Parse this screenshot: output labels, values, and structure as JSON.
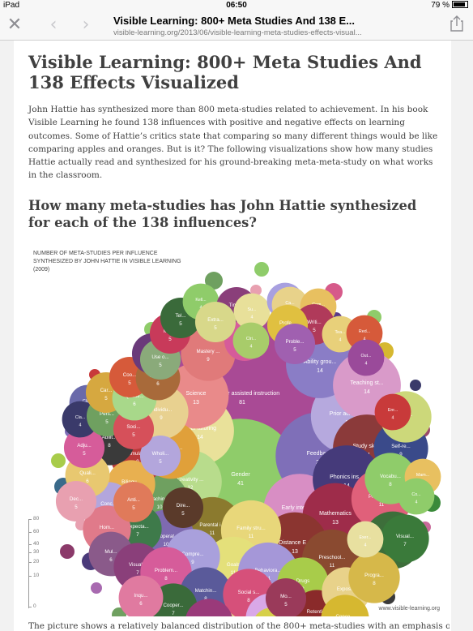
{
  "status": {
    "device": "iPad",
    "time": "06:50",
    "battery": "79 %"
  },
  "nav": {
    "title": "Visible Learning: 800+ Meta Studies And 138 E...",
    "url": "visible-learning.org/2013/06/visible-learning-meta-studies-effects-visual..."
  },
  "article": {
    "title": "Visible Learning: 800+ Meta Studies And 138 Effects Visualized",
    "intro": "John Hattie has synthesized more than 800 meta-studies related to achievement. In his book Visible Learning he found 138 influences with positive and negative effects on learning outcomes. Some of Hattie’s critics state that comparing so many different things would be like comparing apples and oranges. But is it? The following visualizations show how many studies Hattie actually read and synthesized for his ground-breaking meta-meta-study on what works in the classroom.",
    "subtitle": "How many meta-studies has John Hattie synthesized for each of the 138 influences?",
    "outro": "The picture shows a relatively balanced distribution of the 800+ meta-studies with an emphasis on"
  },
  "chart_data": {
    "type": "bubble",
    "title": "NUMBER OF META-STUDIES PER INFLUENCE SYNTHESIZED BY JOHN HATTIE IN VISIBLE LEARNING (2009)",
    "credit": "www.visible-learning.org",
    "scale_ticks": [
      "80",
      "60",
      "40",
      "30",
      "20",
      "10",
      "0"
    ],
    "bubbles": [
      {
        "label": "Computer assisted instruction",
        "value": 81,
        "color": "#a94a95"
      },
      {
        "label": "Gender",
        "value": 41,
        "color": "#8fcc6a"
      },
      {
        "label": "Feedback",
        "value": 23,
        "color": "#7f6fb8"
      },
      {
        "label": "Prior achieve...",
        "value": 17,
        "color": "#b6a9de"
      },
      {
        "label": "Early interve...",
        "value": 16,
        "color": "#d88ec4"
      },
      {
        "label": "Peer tutoring",
        "value": 14,
        "color": "#e9e19a"
      },
      {
        "label": "Ability grou...",
        "value": 14,
        "color": "#8a7dc6"
      },
      {
        "label": "Teaching st...",
        "value": 14,
        "color": "#d99ac9"
      },
      {
        "label": "Study skills",
        "value": 14,
        "color": "#8b3a3a"
      },
      {
        "label": "Phonics ins...",
        "value": 14,
        "color": "#453a7a"
      },
      {
        "label": "Science",
        "value": 13,
        "color": "#e98a8a"
      },
      {
        "label": "Mathematics",
        "value": 13,
        "color": "#9e2c4a"
      },
      {
        "label": "Distance E...",
        "value": 13,
        "color": "#8b3530"
      },
      {
        "label": "Creativity ...",
        "value": 12,
        "color": "#b8dc8c"
      },
      {
        "label": "Parental i...",
        "value": 11,
        "color": "#8b7a2e"
      },
      {
        "label": "Family stru...",
        "value": 11,
        "color": "#e8d77a"
      },
      {
        "label": "Principals...",
        "value": 11,
        "color": "#e0607a"
      },
      {
        "label": "Preschool...",
        "value": 11,
        "color": "#8a4a30"
      },
      {
        "label": "Drama/A...",
        "value": 10,
        "color": "#3d6e3a"
      },
      {
        "label": "Goals",
        "value": 11,
        "color": "#e4e07a"
      },
      {
        "label": "Behaviora...",
        "value": 11,
        "color": "#a597d8"
      },
      {
        "label": "Teaching...",
        "value": 10,
        "color": "#6fa060"
      },
      {
        "label": "Cooperat...",
        "value": 10,
        "color": "#7e6ab0"
      },
      {
        "label": "Desegre...",
        "value": 10,
        "color": "#e0a03a"
      },
      {
        "label": "Simulati...",
        "value": 9,
        "color": "#b83a3a"
      },
      {
        "label": "Compre...",
        "value": 9,
        "color": "#a9a0dc"
      },
      {
        "label": "Mastery ...",
        "value": 9,
        "color": "#e07a7a"
      },
      {
        "label": "Individu...",
        "value": 9,
        "color": "#e8d190"
      },
      {
        "label": "Self-re...",
        "value": 9,
        "color": "#3a4a8a"
      },
      {
        "label": "Vocabu...",
        "value": 8,
        "color": "#8fcc6a"
      },
      {
        "label": "Inter...",
        "value": 8,
        "color": "#ccd87a"
      },
      {
        "label": "Abilit...",
        "value": 8,
        "color": "#3a3a3a"
      },
      {
        "label": "Bilingu...",
        "value": 7,
        "color": "#e8b050"
      },
      {
        "label": "Conc...",
        "value": 7,
        "color": "#b3a6dc"
      },
      {
        "label": "Expecta...",
        "value": 7,
        "color": "#3e7a4a"
      },
      {
        "label": "Hom...",
        "value": 7,
        "color": "#e07a8a"
      },
      {
        "label": "Mul...",
        "value": 6,
        "color": "#8a5a8a"
      },
      {
        "label": "Visual...",
        "value": 7,
        "color": "#8a3f7a"
      },
      {
        "label": "Problem...",
        "value": 8,
        "color": "#d65c9a"
      },
      {
        "label": "Matchin...",
        "value": 8,
        "color": "#5a5a9a"
      },
      {
        "label": "Social s...",
        "value": 8,
        "color": "#d6507a"
      },
      {
        "label": "Frequen...",
        "value": 8,
        "color": "#d9a8e8"
      },
      {
        "label": "Drugs",
        "value": 8,
        "color": "#a8cc4a"
      },
      {
        "label": "Retenti...",
        "value": 7,
        "color": "#8a2a2a"
      },
      {
        "label": "Expos...",
        "value": 7,
        "color": "#e8d28a"
      },
      {
        "label": "Progra...",
        "value": 8,
        "color": "#d6b84a"
      },
      {
        "label": "Visual...",
        "value": 7,
        "color": "#3a7a3a"
      },
      {
        "label": "Cooper...",
        "value": 7,
        "color": "#3a6a3a"
      },
      {
        "label": "Motiva...",
        "value": 7,
        "color": "#9a3a7a"
      },
      {
        "label": "Conce...",
        "value": 7,
        "color": "#d6b830"
      },
      {
        "label": "Inqu...",
        "value": 6,
        "color": "#e07aa0"
      },
      {
        "label": "Self-...",
        "value": 5,
        "color": "#d6d04a"
      },
      {
        "label": "Mo...",
        "value": 5,
        "color": "#9a3a5a"
      },
      {
        "label": "Dire...",
        "value": 5,
        "color": "#5a3a2a"
      },
      {
        "label": "Wholi...",
        "value": 5,
        "color": "#b3a6dc"
      },
      {
        "label": "Quali...",
        "value": 6,
        "color": "#e8c870"
      },
      {
        "label": "Anti...",
        "value": 5,
        "color": "#e07a5a"
      },
      {
        "label": "Dec...",
        "value": 5,
        "color": "#e8a0b0"
      },
      {
        "label": "Adju...",
        "value": 5,
        "color": "#d65c9a"
      },
      {
        "label": "Cla...",
        "value": 4,
        "color": "#6a6aaa"
      },
      {
        "label": "Cla...",
        "value": 4,
        "color": "#3a3a6a"
      },
      {
        "label": "Pers...",
        "value": 5,
        "color": "#6fa060"
      },
      {
        "label": "Car...",
        "value": 5,
        "color": "#d6a840"
      },
      {
        "label": "Soci...",
        "value": 5,
        "color": "#d6505a"
      },
      {
        "label": "Questi...",
        "value": 6,
        "color": "#a8d88a"
      },
      {
        "label": "Coo...",
        "value": 5,
        "color": "#d65a3a"
      },
      {
        "label": "Self-c...",
        "value": 6,
        "color": "#a86a3a"
      },
      {
        "label": "Fina...",
        "value": 5,
        "color": "#6a3a7a"
      },
      {
        "label": "Use o...",
        "value": 5,
        "color": "#8aaa7a"
      },
      {
        "label": "Micr...",
        "value": 5,
        "color": "#c83a5a"
      },
      {
        "label": "Tel...",
        "value": 5,
        "color": "#3a6a3a"
      },
      {
        "label": "Kell...",
        "value": 4,
        "color": "#8fcc6a"
      },
      {
        "label": "Time...",
        "value": 5,
        "color": "#8a3f7a"
      },
      {
        "label": "Ope...",
        "value": 5,
        "color": "#d65c9a"
      },
      {
        "label": "Su...",
        "value": 4,
        "color": "#e8e09a"
      },
      {
        "label": "We...",
        "value": 4,
        "color": "#a8a0e0"
      },
      {
        "label": "Ca...",
        "value": 4,
        "color": "#e8d28a"
      },
      {
        "label": "Com...",
        "value": 4,
        "color": "#e8c060"
      },
      {
        "label": "Writi...",
        "value": 5,
        "color": "#b03a5a"
      },
      {
        "label": "Profe...",
        "value": 5,
        "color": "#e0c040"
      },
      {
        "label": "Extra...",
        "value": 5,
        "color": "#d8d88a"
      },
      {
        "label": "Proble...",
        "value": 5,
        "color": "#a060b0"
      },
      {
        "label": "Clri...",
        "value": 4,
        "color": "#a8cc6a"
      },
      {
        "label": "Tea...",
        "value": 4,
        "color": "#e8d07a"
      },
      {
        "label": "Red...",
        "value": 4,
        "color": "#d65a3a"
      },
      {
        "label": "Out...",
        "value": 4,
        "color": "#9a4a9a"
      },
      {
        "label": "Enr...",
        "value": 4,
        "color": "#c83a3a"
      },
      {
        "label": "Mam...",
        "value": 4,
        "color": "#e8c060"
      },
      {
        "label": "Co...",
        "value": 4,
        "color": "#8fcc6a"
      },
      {
        "label": "Exer...",
        "value": 4,
        "color": "#e8e0a0"
      }
    ]
  }
}
